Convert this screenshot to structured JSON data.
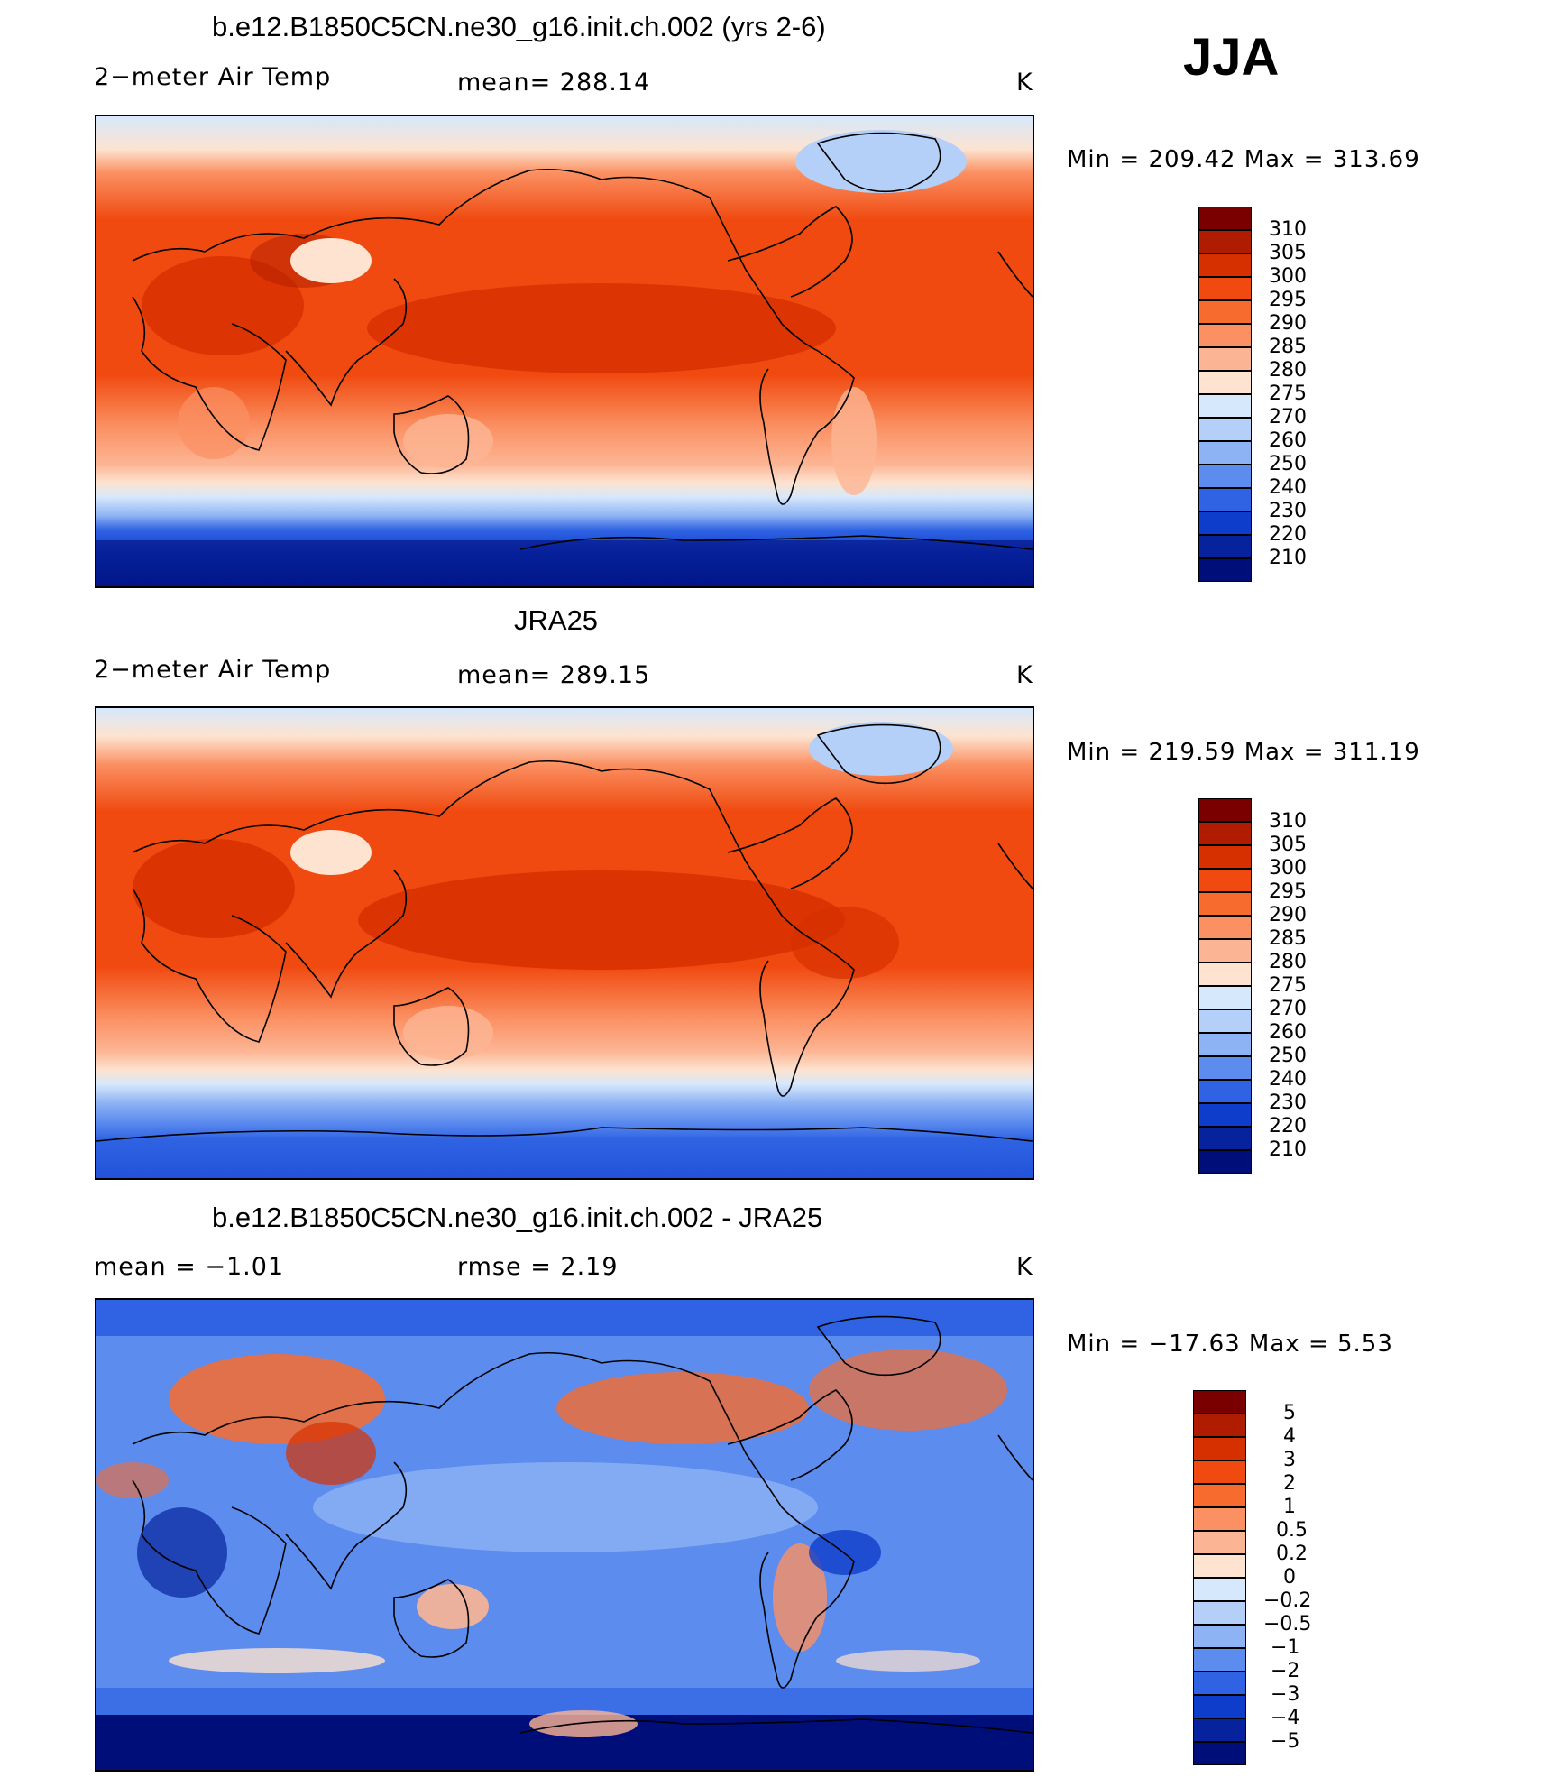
{
  "season": "JJA",
  "panels": [
    {
      "title": "b.e12.B1850C5CN.ne30_g16.init.ch.002 (yrs 2-6)",
      "left_label": "2−meter Air Temp",
      "center_label": "mean=  288.14",
      "units": "K",
      "minmax": "Min  =  209.42  Max  =  313.69",
      "colorbar_labels": [
        "310",
        "305",
        "300",
        "295",
        "290",
        "285",
        "280",
        "275",
        "270",
        "260",
        "250",
        "240",
        "230",
        "220",
        "210"
      ]
    },
    {
      "title": "JRA25",
      "left_label": "2−meter Air Temp",
      "center_label": "mean=  289.15",
      "units": "K",
      "minmax": "Min  =  219.59  Max  =  311.19",
      "colorbar_labels": [
        "310",
        "305",
        "300",
        "295",
        "290",
        "285",
        "280",
        "275",
        "270",
        "260",
        "250",
        "240",
        "230",
        "220",
        "210"
      ]
    },
    {
      "title": "b.e12.B1850C5CN.ne30_g16.init.ch.002 - JRA25",
      "left_label": "mean  =    −1.01",
      "center_label": "rmse  =     2.19",
      "units": "K",
      "minmax": "Min  =  −17.63  Max  =     5.53",
      "colorbar_labels": [
        "5",
        "4",
        "3",
        "2",
        "1",
        "0.5",
        "0.2",
        "0",
        "−0.2",
        "−0.5",
        "−1",
        "−2",
        "−3",
        "−4",
        "−5"
      ]
    }
  ],
  "colors": {
    "temp_palette": [
      "#7a0000",
      "#b01c00",
      "#d73000",
      "#f04a10",
      "#f76c2e",
      "#fb9062",
      "#fcb594",
      "#fde3d0",
      "#d6e8fb",
      "#b4cff8",
      "#8db3f4",
      "#5d8cef",
      "#2f63e3",
      "#0f3dcb",
      "#06229c",
      "#000e7a"
    ],
    "diff_palette": [
      "#7a0000",
      "#b01c00",
      "#d73000",
      "#f04a10",
      "#f76c2e",
      "#fb9062",
      "#fcb594",
      "#fde3d0",
      "#d6e8fb",
      "#b4cff8",
      "#8db3f4",
      "#5d8cef",
      "#2f63e3",
      "#0f3dcb",
      "#06229c",
      "#000e7a"
    ]
  }
}
